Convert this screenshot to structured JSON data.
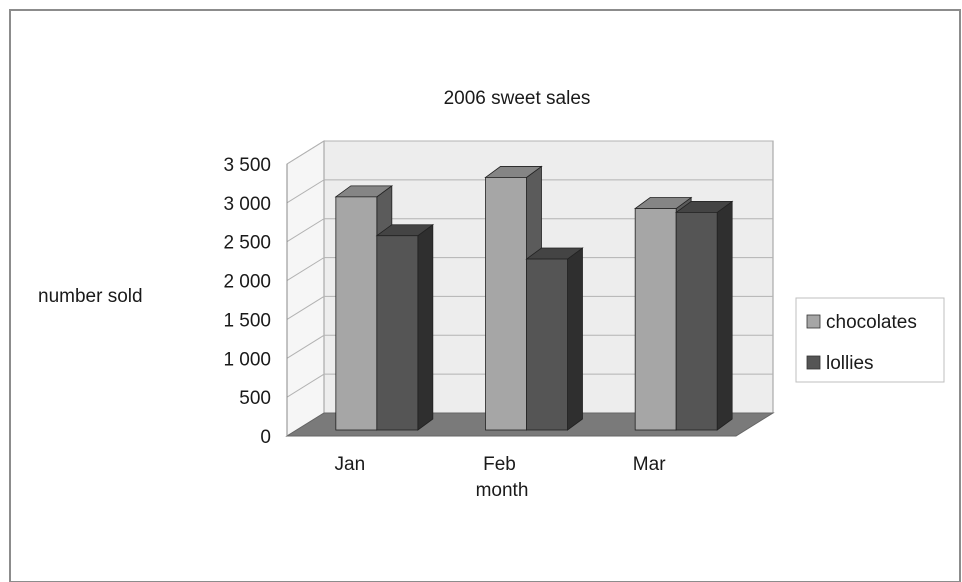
{
  "chart_data": {
    "type": "bar",
    "title": "2006 sweet sales",
    "xlabel": "month",
    "ylabel": "number sold",
    "categories": [
      "Jan",
      "Feb",
      "Mar"
    ],
    "series": [
      {
        "name": "chocolates",
        "values": [
          3000,
          3250,
          2850
        ]
      },
      {
        "name": "lollies",
        "values": [
          2500,
          2200,
          2800
        ]
      }
    ],
    "ylim": [
      0,
      3500
    ],
    "yticks": [
      0,
      500,
      1000,
      1500,
      2000,
      2500,
      3000,
      3500
    ],
    "ytick_labels": [
      "0",
      "500",
      "1 000",
      "1 500",
      "2 000",
      "2 500",
      "3 000",
      "3 500"
    ],
    "grid": true,
    "three_d": true,
    "legend_position": "right",
    "colors": {
      "chocolates": "#a6a6a6",
      "lollies": "#555555",
      "floor": "#7a7a7a",
      "wall": "#ededed",
      "gridline": "#b3b3b3"
    }
  }
}
